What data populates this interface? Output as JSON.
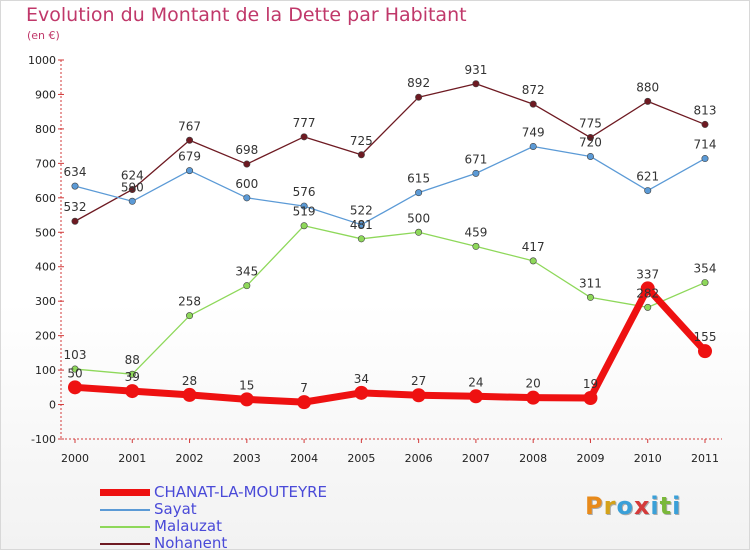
{
  "title": "Evolution du Montant de la Dette par Habitant",
  "subtitle": "(en €)",
  "logo": {
    "text": "Proxiti",
    "colors": [
      "#e88a1a",
      "#d4a21a",
      "#3aa0d8",
      "#d43a3a",
      "#3aa0d8",
      "#7ab83a",
      "#3aa0d8"
    ]
  },
  "chart_data": {
    "type": "line",
    "x": [
      "2000",
      "2001",
      "2002",
      "2003",
      "2004",
      "2005",
      "2006",
      "2007",
      "2008",
      "2009",
      "2010",
      "2011"
    ],
    "ylim": [
      -100,
      1000
    ],
    "yticks": [
      "-100",
      "0",
      "100",
      "200",
      "300",
      "400",
      "500",
      "600",
      "700",
      "800",
      "900",
      "1000"
    ],
    "grid": false,
    "legend_position": "bottom-left",
    "series": [
      {
        "name": "CHANAT-LA-MOUTEYRE",
        "color": "#ee1111",
        "values": [
          50,
          39,
          28,
          15,
          7,
          34,
          27,
          24,
          20,
          19,
          337,
          155
        ]
      },
      {
        "name": "Sayat",
        "color": "#5b9ad6",
        "values": [
          634,
          590,
          679,
          600,
          576,
          522,
          615,
          671,
          749,
          720,
          621,
          714
        ]
      },
      {
        "name": "Malauzat",
        "color": "#8ed85a",
        "values": [
          103,
          88,
          258,
          345,
          519,
          481,
          500,
          459,
          417,
          311,
          282,
          354
        ]
      },
      {
        "name": "Nohanent",
        "color": "#6e1a22",
        "values": [
          532,
          624,
          767,
          698,
          777,
          725,
          892,
          931,
          872,
          775,
          880,
          813
        ]
      }
    ]
  }
}
